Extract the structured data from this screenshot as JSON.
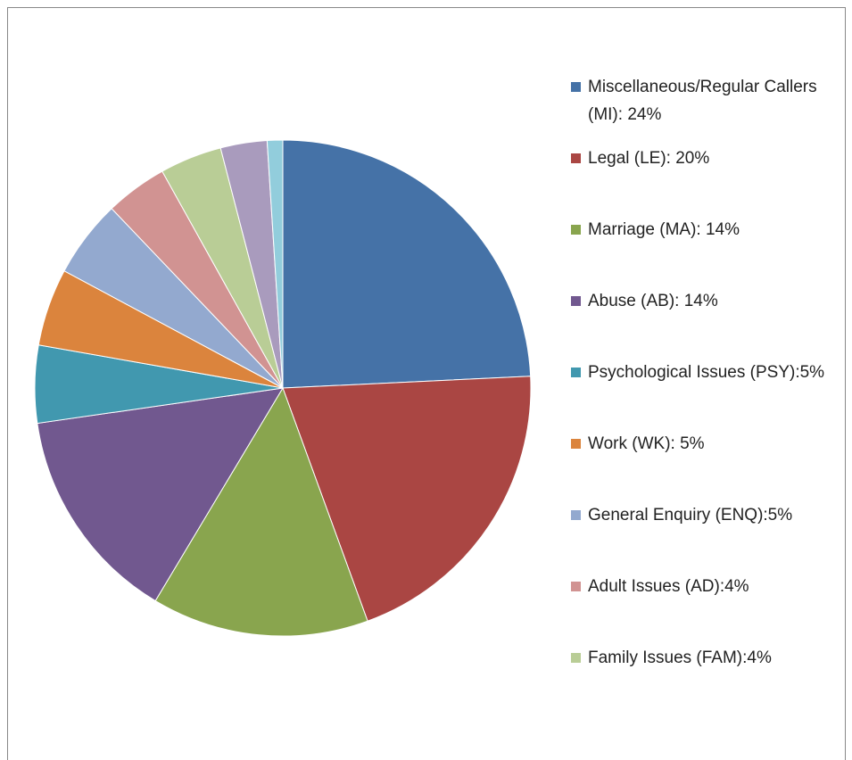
{
  "chart_data": {
    "type": "pie",
    "categories": [
      "Miscellaneous/Regular Callers (MI): 24%",
      "Legal (LE): 20%",
      "Marriage (MA): 14%",
      "Abuse (AB): 14%",
      "Psychological Issues (PSY):5%",
      "Work (WK): 5%",
      "General Enquiry (ENQ):5%",
      "Adult Issues (AD):4%",
      "Family Issues (FAM):4%",
      null,
      null
    ],
    "values": [
      24,
      20,
      14,
      14,
      5,
      5,
      5,
      4,
      4,
      3,
      1
    ],
    "colors": [
      "#4572a7",
      "#aa4643",
      "#89a54e",
      "#71588f",
      "#4198af",
      "#db843d",
      "#93a9cf",
      "#d19392",
      "#b9cd96",
      "#a99bbd",
      "#92cddc"
    ],
    "legend": "right"
  }
}
